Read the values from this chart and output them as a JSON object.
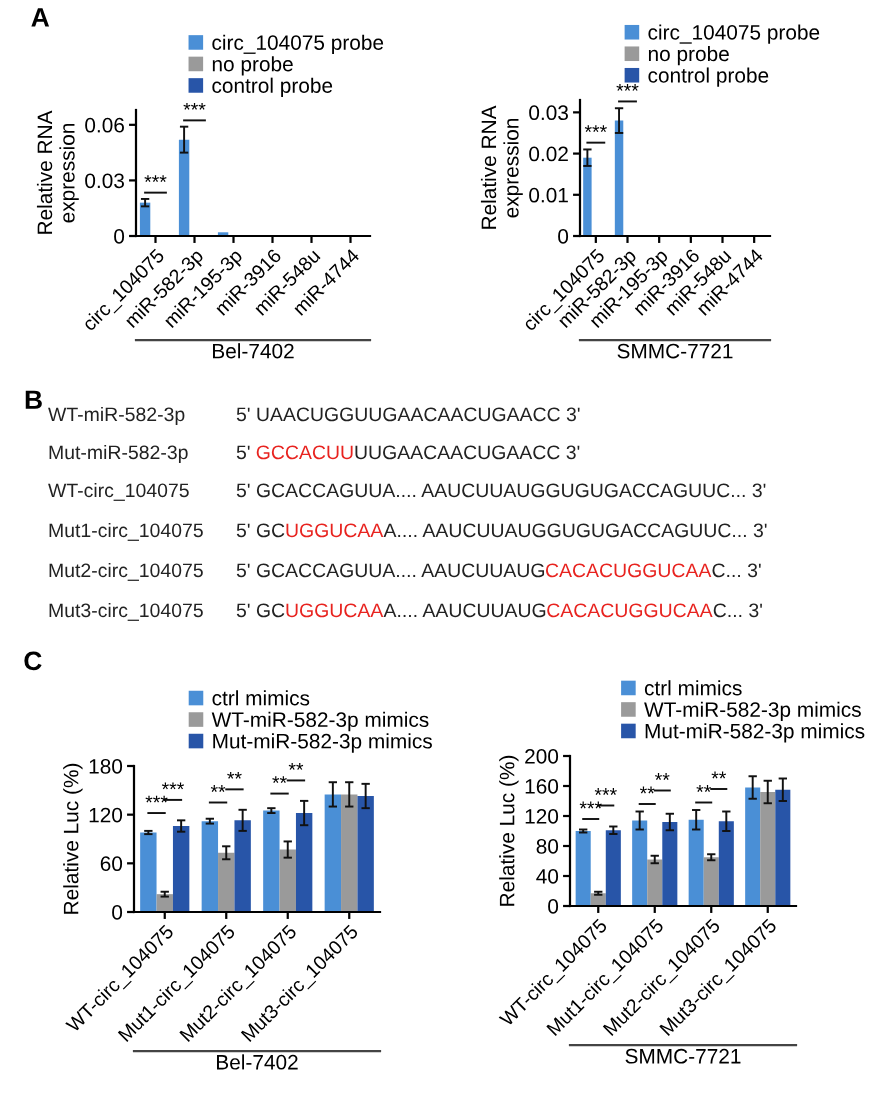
{
  "chart_data": [
    {
      "type": "bar",
      "title": "A",
      "ylabel": "Relative RNA\nexpression",
      "xlabel": "Bel-7402",
      "categories": [
        "circ_104075",
        "miR-582-3p",
        "miR-195-3p",
        "miR-3916",
        "miR-548u",
        "miR-4744"
      ],
      "ylim": [
        0,
        0.068
      ],
      "yticks": [
        0,
        0.03,
        0.06
      ],
      "legend": "top",
      "annotations": [
        "***",
        "***"
      ],
      "series": [
        {
          "name": "circ_104075 probe",
          "color": "#4a8fd6",
          "values": [
            0.018,
            0.052,
            0.002,
            0,
            0,
            0
          ],
          "errors": [
            0.002,
            0.007,
            null,
            null,
            null,
            null
          ]
        },
        {
          "name": "no probe",
          "color": "#9a9a9a",
          "values": [
            0,
            0,
            0,
            0,
            0,
            0
          ]
        },
        {
          "name": "control probe",
          "color": "#2855a8",
          "values": [
            0,
            0,
            0,
            0,
            0,
            0
          ]
        }
      ]
    },
    {
      "type": "bar",
      "ylabel": "Relative RNA\nexpression",
      "xlabel": "SMMC-7721",
      "categories": [
        "circ_104075",
        "miR-582-3p",
        "miR-195-3p",
        "miR-3916",
        "miR-548u",
        "miR-4744"
      ],
      "ylim": [
        0,
        0.033
      ],
      "yticks": [
        0,
        0.01,
        0.02,
        0.03
      ],
      "legend": "top",
      "annotations": [
        "***",
        "***"
      ],
      "series": [
        {
          "name": "circ_104075 probe",
          "color": "#4a8fd6",
          "values": [
            0.019,
            0.028,
            0,
            0,
            0,
            0
          ],
          "errors": [
            0.002,
            0.003,
            null,
            null,
            null,
            null
          ]
        },
        {
          "name": "no probe",
          "color": "#9a9a9a",
          "values": [
            0,
            0,
            0,
            0,
            0,
            0
          ]
        },
        {
          "name": "control probe",
          "color": "#2855a8",
          "values": [
            0,
            0,
            0,
            0,
            0,
            0
          ]
        }
      ]
    },
    {
      "type": "other",
      "title": "B"
    },
    {
      "type": "other",
      "title": "WT-miR-582-3p",
      "annotations": [
        "5' UAACUGGUUGAACAACUGAACC 3'"
      ],
      "colors": [
        "#222222"
      ]
    },
    {
      "type": "other",
      "title": "Mut-miR-582-3p",
      "annotations": [
        "5' ",
        "GCCACUU",
        "UUGAACAACUGAACC 3'"
      ],
      "colors": [
        "#222222",
        "#e8231f",
        "#222222"
      ]
    },
    {
      "type": "other",
      "title": "WT-circ_104075",
      "annotations": [
        "5' GCACCAGUUA.... AAUCUUAUGGUGUGACCAGUUC... 3'"
      ],
      "colors": [
        "#222222"
      ]
    },
    {
      "type": "other",
      "title": "Mut1-circ_104075",
      "annotations": [
        "5' GC",
        "UGGUCAA",
        "A.... AAUCUUAUGGUGUGACCAGUUC... 3'"
      ],
      "colors": [
        "#222222",
        "#e8231f",
        "#222222"
      ]
    },
    {
      "type": "other",
      "title": "Mut2-circ_104075",
      "annotations": [
        "5' GCACCAGUUA.... AAUCUUAUG",
        "CACACUGGUCAA",
        "C... 3'"
      ],
      "colors": [
        "#222222",
        "#e8231f",
        "#222222"
      ]
    },
    {
      "type": "other",
      "title": "Mut3-circ_104075",
      "annotations": [
        "5' GC",
        "UGGUCAA",
        "A.... AAUCUUAUG",
        "CACACUGGUCAA",
        "C... 3'"
      ],
      "colors": [
        "#222222",
        "#e8231f",
        "#222222",
        "#e8231f",
        "#222222"
      ]
    },
    {
      "type": "bar",
      "title": "C",
      "ylabel": "Relative Luc (%)",
      "xlabel": "Bel-7402",
      "categories": [
        "WT-circ_104075",
        "Mut1-circ_104075",
        "Mut2-circ_104075",
        "Mut3-circ_104075"
      ],
      "ylim": [
        0,
        180
      ],
      "yticks": [
        0,
        60,
        120,
        180
      ],
      "legend": "top",
      "annotations": [
        "***",
        "***",
        "**",
        "**",
        "**",
        "**"
      ],
      "series": [
        {
          "name": "ctrl mimics",
          "color": "#4a8fd6",
          "values": [
            98,
            112,
            125,
            145
          ],
          "errors": [
            2,
            3,
            3,
            15
          ]
        },
        {
          "name": "WT-miR-582-3p mimics",
          "color": "#9a9a9a",
          "values": [
            22,
            73,
            77,
            145
          ],
          "errors": [
            3,
            8,
            10,
            15
          ]
        },
        {
          "name": "Mut-miR-582-3p mimics",
          "color": "#2855a8",
          "values": [
            106,
            113,
            122,
            143
          ],
          "errors": [
            7,
            13,
            15,
            15
          ]
        }
      ]
    },
    {
      "type": "bar",
      "ylabel": "Relative Luc (%)",
      "xlabel": "SMMC-7721",
      "categories": [
        "WT-circ_104075",
        "Mut1-circ_104075",
        "Mut2-circ_104075",
        "Mut3-circ_104075"
      ],
      "ylim": [
        0,
        200
      ],
      "yticks": [
        0,
        40,
        80,
        120,
        160,
        200
      ],
      "legend": "top",
      "annotations": [
        "***",
        "***",
        "**",
        "**",
        "**",
        "**"
      ],
      "series": [
        {
          "name": "ctrl mimics",
          "color": "#4a8fd6",
          "values": [
            100,
            114,
            115,
            158
          ],
          "errors": [
            2,
            12,
            13,
            15
          ]
        },
        {
          "name": "WT-miR-582-3p mimics",
          "color": "#9a9a9a",
          "values": [
            17,
            62,
            65,
            152
          ],
          "errors": [
            2,
            5,
            4,
            15
          ]
        },
        {
          "name": "Mut-miR-582-3p mimics",
          "color": "#2855a8",
          "values": [
            101,
            112,
            113,
            155
          ],
          "errors": [
            5,
            11,
            13,
            15
          ]
        }
      ]
    }
  ]
}
